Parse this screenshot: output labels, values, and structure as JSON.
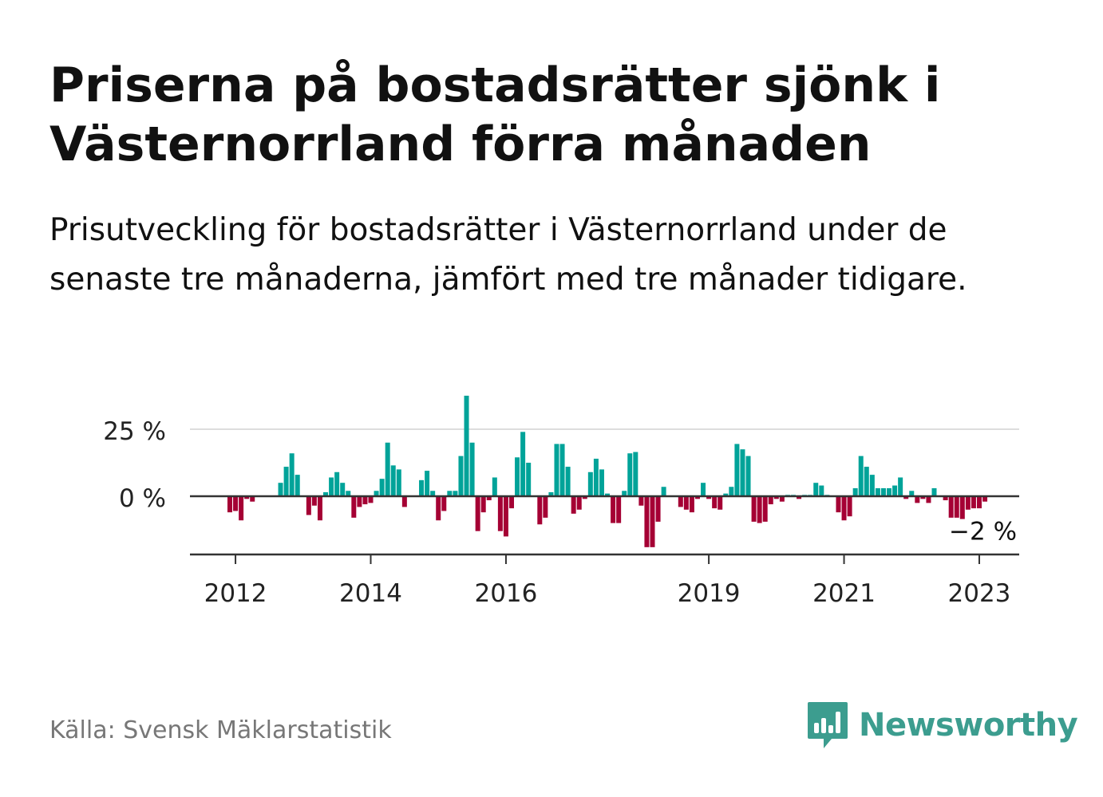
{
  "title": "Priserna på bostadsrätter sjönk i Västernorrland förra månaden",
  "subtitle": "Prisutveckling för bostadsrätter i Västernorrland under de senaste tre månaderna, jämfört med tre månader tidigare.",
  "source": "Källa: Svensk Mäklarstatistik",
  "brand": {
    "name": "Newsworthy",
    "icon": "bar-chart-speech-bubble-icon",
    "color": "#3c9d8f"
  },
  "colors": {
    "positive": "#00a399",
    "negative": "#a50034",
    "grid": "#dddddd",
    "axis": "#333333",
    "text": "#222222"
  },
  "chart_data": {
    "type": "bar",
    "xlabel": "",
    "ylabel": "",
    "ylim": [
      -22,
      38
    ],
    "yticks": [
      {
        "value": 0,
        "label": "0 %"
      },
      {
        "value": 25,
        "label": "25 %"
      }
    ],
    "xticks": [
      {
        "value": "2012-01",
        "label": "2012"
      },
      {
        "value": "2014-01",
        "label": "2014"
      },
      {
        "value": "2016-01",
        "label": "2016"
      },
      {
        "value": "2019-01",
        "label": "2019"
      },
      {
        "value": "2021-01",
        "label": "2021"
      },
      {
        "value": "2023-01",
        "label": "2023"
      }
    ],
    "annotation": {
      "label": "−2 %",
      "x": "2023-01"
    },
    "start": "2011-12",
    "values": [
      -6,
      -5.5,
      -9,
      -1,
      -2,
      0,
      0,
      0,
      0,
      5,
      11,
      16,
      8,
      0,
      -7,
      -3.5,
      -9,
      1.5,
      7,
      9,
      5,
      2,
      -8,
      -4,
      -3,
      -2.5,
      2,
      6.5,
      20,
      11.5,
      10,
      -4,
      0,
      0,
      6,
      9.5,
      2,
      -9,
      -5.5,
      2,
      2,
      15,
      37.5,
      20,
      -13,
      -6,
      -1.5,
      7,
      -13,
      -15,
      -4.5,
      14.5,
      24,
      12.5,
      0,
      -10.5,
      -8,
      1.5,
      19.5,
      19.5,
      11,
      -6.5,
      -5,
      -1,
      9,
      14,
      10,
      1,
      -10,
      -10,
      2,
      16,
      16.5,
      -3.5,
      -19,
      -19,
      -9.5,
      3.5,
      0,
      0,
      -4,
      -5,
      -6,
      -1,
      5,
      -1,
      -4.5,
      -5,
      1,
      3.5,
      19.5,
      17.5,
      15,
      -9.5,
      -10,
      -9.5,
      -3,
      -1,
      -2,
      0.5,
      0.5,
      -1,
      0.5,
      0.5,
      5,
      4,
      0.5,
      0,
      -6,
      -9,
      -7.5,
      3,
      15,
      11,
      8,
      3,
      3,
      3,
      4,
      7,
      -1,
      2,
      -2.5,
      -1,
      -2.5,
      3,
      0,
      -1.5,
      -8,
      -8,
      -8.5,
      -5,
      -4.5,
      -4.5,
      -2
    ]
  }
}
